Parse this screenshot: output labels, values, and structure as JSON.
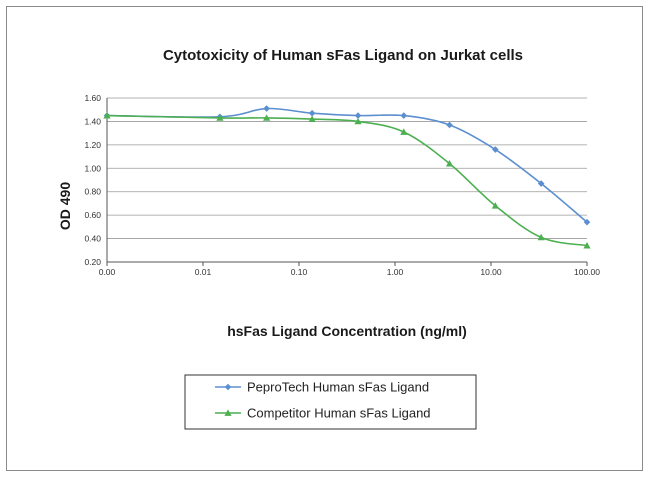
{
  "chart_data": {
    "type": "line",
    "title": "Cytotoxicity of Human sFas Ligand on Jurkat cells",
    "xlabel": "hsFas Ligand Concentration (ng/ml)",
    "ylabel": "OD 490",
    "xscale": "log",
    "xlim": [
      0.001,
      100
    ],
    "ylim": [
      0.2,
      1.6
    ],
    "x_tick_labels": [
      "0.00",
      "0.01",
      "0.10",
      "1.00",
      "10.00",
      "100.00"
    ],
    "y_tick_labels": [
      "1.60",
      "1.40",
      "1.20",
      "1.00",
      "0.80",
      "0.60",
      "0.40",
      "0.20"
    ],
    "grid": "horizontal",
    "legend_position": "bottom",
    "series": [
      {
        "name": "PeproTech Human sFas Ligand",
        "color": "#5b8fd0",
        "marker": "diamond",
        "x": [
          0.001,
          0.015,
          0.046,
          0.137,
          0.412,
          1.235,
          3.7,
          11.1,
          33.3,
          100
        ],
        "values": [
          1.45,
          1.44,
          1.51,
          1.47,
          1.45,
          1.45,
          1.37,
          1.16,
          0.87,
          0.54
        ]
      },
      {
        "name": "Competitor Human sFas Ligand",
        "color": "#4caf50",
        "marker": "triangle",
        "x": [
          0.001,
          0.015,
          0.046,
          0.137,
          0.412,
          1.235,
          3.7,
          11.1,
          33.3,
          100
        ],
        "values": [
          1.45,
          1.43,
          1.43,
          1.42,
          1.4,
          1.31,
          1.04,
          0.68,
          0.41,
          0.34
        ]
      }
    ]
  }
}
